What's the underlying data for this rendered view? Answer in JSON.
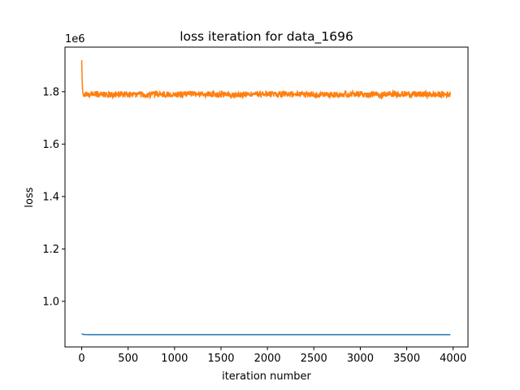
{
  "chart_data": {
    "type": "line",
    "title": "loss iteration for data_1696",
    "xlabel": "iteration number",
    "ylabel": "loss",
    "y_offset_label": "1e6",
    "xlim": [
      -180,
      4160
    ],
    "ylim": [
      826000,
      1970000
    ],
    "x_ticks": [
      0,
      500,
      1000,
      1500,
      2000,
      2500,
      3000,
      3500,
      4000
    ],
    "y_ticks": [
      1000000,
      1200000,
      1400000,
      1600000,
      1800000
    ],
    "y_tick_labels": [
      "1.0",
      "1.2",
      "1.4",
      "1.6",
      "1.8"
    ],
    "grid": false,
    "legend": "none",
    "series": [
      {
        "color": "#1f77b4",
        "x": [
          0,
          10,
          20,
          40,
          80,
          200,
          600,
          1000,
          1500,
          2000,
          2500,
          3000,
          3500,
          3970
        ],
        "y": [
          877000,
          874500,
          873500,
          873200,
          873000,
          873000,
          873000,
          873000,
          873000,
          873000,
          873000,
          873000,
          873000,
          873000
        ]
      },
      {
        "color": "#ff7f0e",
        "x": [
          0,
          5,
          10,
          15,
          20,
          30,
          50,
          100,
          200,
          300,
          400,
          500,
          600,
          700,
          800,
          900,
          1000,
          1200,
          1400,
          1600,
          1800,
          2000,
          2200,
          2400,
          2600,
          2800,
          3000,
          3200,
          3400,
          3600,
          3800,
          3970
        ],
        "y": [
          1920000,
          1840000,
          1800000,
          1790000,
          1785000,
          1790000,
          1788000,
          1790000,
          1792000,
          1789000,
          1791000,
          1788000,
          1790000,
          1787000,
          1792000,
          1790000,
          1789000,
          1791000,
          1790000,
          1788000,
          1790000,
          1791000,
          1789000,
          1790000,
          1788000,
          1791000,
          1790000,
          1789000,
          1791000,
          1790000,
          1789000,
          1790000
        ],
        "noise_amplitude": 12000
      }
    ]
  }
}
